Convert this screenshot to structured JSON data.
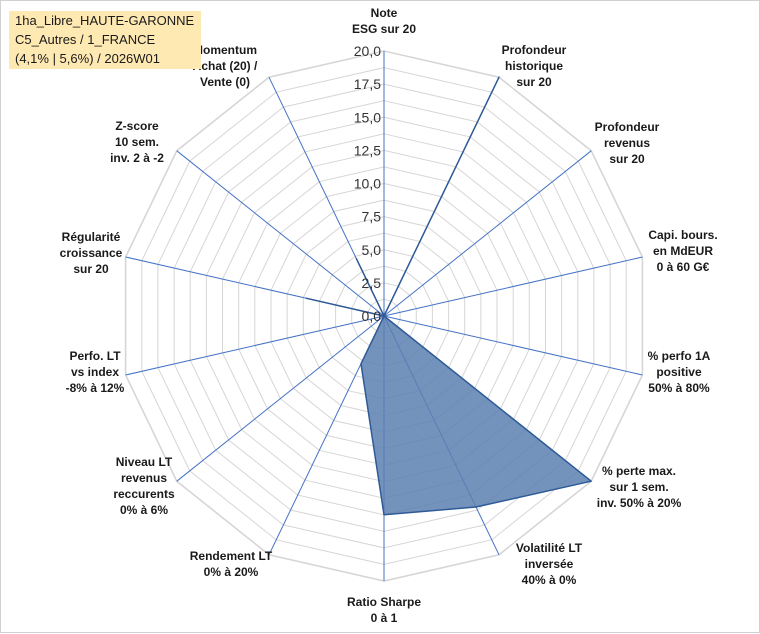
{
  "chart_data": {
    "type": "radar",
    "title_lines": [
      "1ha_Libre_HAUTE-GARONNE",
      "C5_Autres / 1_FRANCE",
      "(4,1% | 5,6%) / 2026W01"
    ],
    "axes": [
      {
        "label": [
          "Note",
          "ESG sur 20"
        ],
        "value": 0
      },
      {
        "label": [
          "Profondeur",
          "historique",
          "sur 20"
        ],
        "value": 20
      },
      {
        "label": [
          "Profondeur",
          "revenus",
          "sur 20"
        ],
        "value": 0
      },
      {
        "label": [
          "Capi. bours.",
          "en MdEUR",
          "0 à 60 G€"
        ],
        "value": 0
      },
      {
        "label": [
          "% perfo 1A",
          "positive",
          "50% à 80%"
        ],
        "value": 0
      },
      {
        "label": [
          "% perte max.",
          "sur 1 sem.",
          "inv. 50% à 20%"
        ],
        "value": 20
      },
      {
        "label": [
          "Volatilité LT",
          "inversée",
          "40% à 0%"
        ],
        "value": 16
      },
      {
        "label": [
          "Ratio Sharpe",
          "0 à 1"
        ],
        "value": 15
      },
      {
        "label": [
          "Rendement LT",
          "0% à 20%"
        ],
        "value": 4
      },
      {
        "label": [
          "Niveau LT",
          "revenus",
          "reccurents",
          "0% à 6%"
        ],
        "value": 0
      },
      {
        "label": [
          "Perfo. LT",
          "vs index",
          "-8% à 12%"
        ],
        "value": 0
      },
      {
        "label": [
          "Régularité",
          "croissance",
          "sur 20"
        ],
        "value": 6
      },
      {
        "label": [
          "Z-score",
          "10 sem.",
          "inv. 2 à -2"
        ],
        "value": 0
      },
      {
        "label": [
          "Momentum",
          "Achat (20) /",
          "Vente (0)"
        ],
        "value": 4.8
      }
    ],
    "tick_labels": [
      "0,0",
      "2,5",
      "5,0",
      "7,5",
      "10,0",
      "12,5",
      "15,0",
      "17,5",
      "20,0"
    ],
    "range": [
      0,
      20
    ],
    "grid_step": 1.25,
    "series_color": "#5b80b0",
    "series_stroke": "#2e5a96",
    "axis_color": "#4472c4",
    "grid_color": "#d6d6d6"
  }
}
